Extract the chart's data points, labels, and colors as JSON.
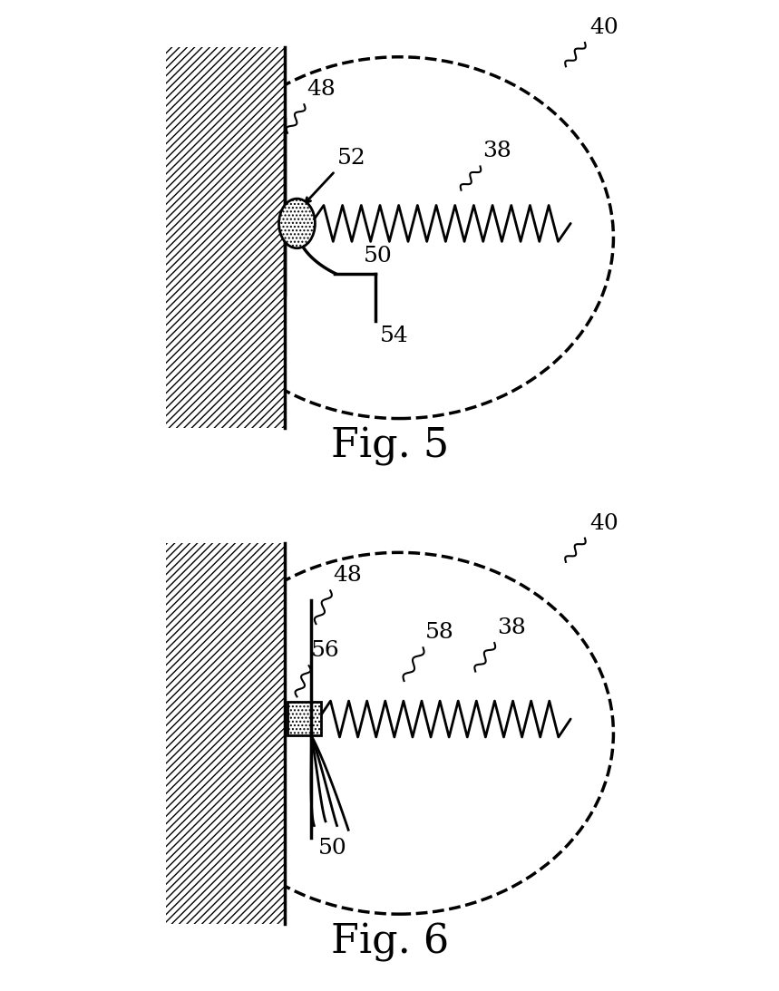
{
  "fig5_label": "Fig. 5",
  "fig6_label": "Fig. 6",
  "label_40": "40",
  "label_38": "38",
  "label_48": "48",
  "label_52": "52",
  "label_50": "50",
  "label_54": "54",
  "label_56": "56",
  "label_58": "58",
  "bg_color": "#ffffff",
  "font_size_label": 18,
  "font_size_fig": 32,
  "spring_lw": 2.0,
  "wall_lw": 2.5
}
